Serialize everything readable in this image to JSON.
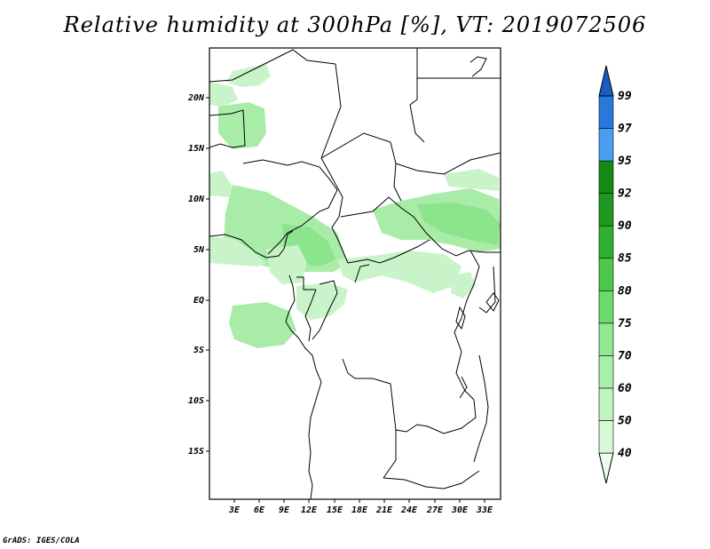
{
  "title": "Relative humidity at 300hPa [%], VT: 2019072506",
  "credit": "GrADS: IGES/COLA",
  "map": {
    "lat_labels": [
      "20N",
      "15N",
      "10N",
      "5N",
      "EQ",
      "5S",
      "10S",
      "15S"
    ],
    "lon_labels": [
      "3E",
      "6E",
      "9E",
      "12E",
      "15E",
      "18E",
      "21E",
      "24E",
      "27E",
      "30E",
      "33E"
    ]
  },
  "colorbar": {
    "levels": [
      "40",
      "50",
      "60",
      "70",
      "75",
      "80",
      "85",
      "90",
      "92",
      "95",
      "97",
      "99"
    ],
    "colors": [
      "#edfded",
      "#d6f8d6",
      "#bff4bf",
      "#a8f0a8",
      "#93e893",
      "#6cdb6c",
      "#4cc94c",
      "#2fb02f",
      "#1e981e",
      "#148a14",
      "#4a9ef2",
      "#2a78dc",
      "#1a5cc4"
    ]
  },
  "humidity_color": "#9fe89f"
}
